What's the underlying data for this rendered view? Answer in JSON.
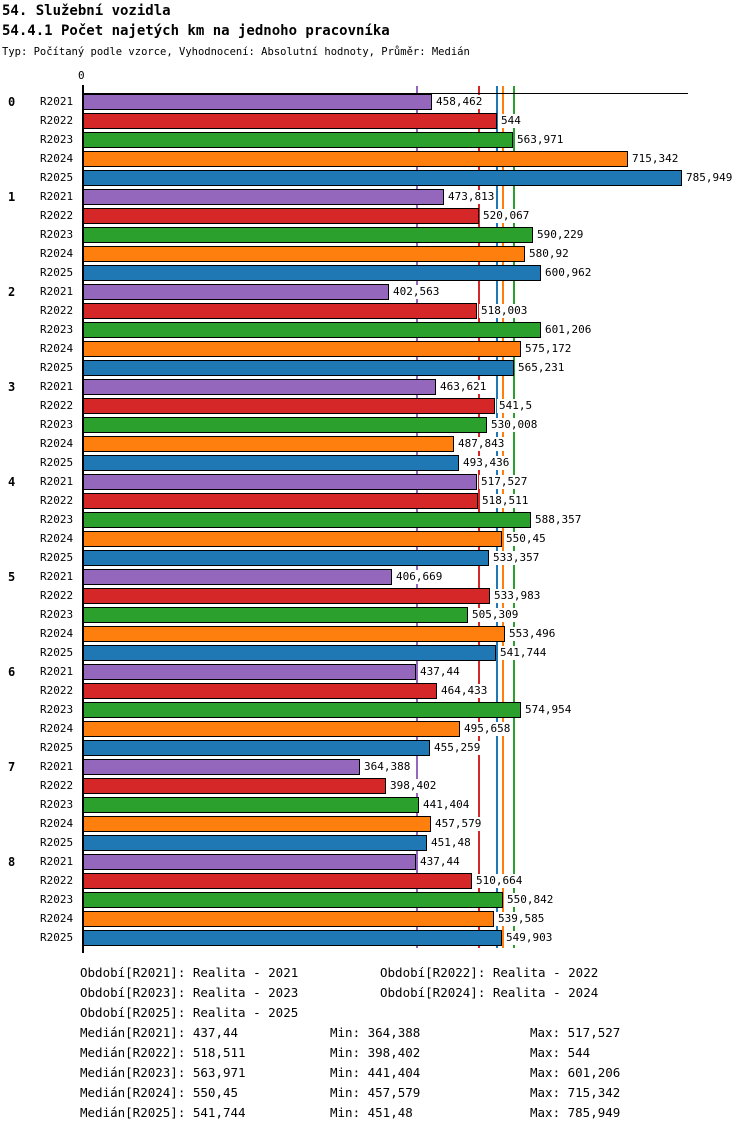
{
  "header": {
    "title1": "54. Služební vozidla",
    "title2": "54.4.1 Počet najetých km na jednoho pracovníka",
    "meta": "Typ: Počítaný podle vzorce, Vyhodnocení: Absolutní hodnoty, Průměr: Medián"
  },
  "chart_data": {
    "type": "bar",
    "orientation": "horizontal",
    "value_axis": {
      "zero_label": "0",
      "xlim": [
        0,
        786
      ],
      "grid": false
    },
    "legend_position": "bottom",
    "series": [
      {
        "code": "R2021",
        "color": "#9467bd",
        "median": "437,44",
        "min": "364,388",
        "max": "517,527"
      },
      {
        "code": "R2022",
        "color": "#d62728",
        "median": "518,511",
        "min": "398,402",
        "max": "544"
      },
      {
        "code": "R2023",
        "color": "#2ca02c",
        "median": "563,971",
        "min": "441,404",
        "max": "601,206"
      },
      {
        "code": "R2024",
        "color": "#ff7f0e",
        "median": "550,45",
        "min": "457,579",
        "max": "715,342"
      },
      {
        "code": "R2025",
        "color": "#1f77b4",
        "median": "541,744",
        "min": "451,48",
        "max": "785,949"
      }
    ],
    "groups": [
      {
        "label": "0",
        "values": [
          "458,462",
          "544",
          "563,971",
          "715,342",
          "785,949"
        ]
      },
      {
        "label": "1",
        "values": [
          "473,813",
          "520,067",
          "590,229",
          "580,92",
          "600,962"
        ]
      },
      {
        "label": "2",
        "values": [
          "402,563",
          "518,003",
          "601,206",
          "575,172",
          "565,231"
        ]
      },
      {
        "label": "3",
        "values": [
          "463,621",
          "541,5",
          "530,008",
          "487,843",
          "493,436"
        ]
      },
      {
        "label": "4",
        "values": [
          "517,527",
          "518,511",
          "588,357",
          "550,45",
          "533,357"
        ]
      },
      {
        "label": "5",
        "values": [
          "406,669",
          "533,983",
          "505,309",
          "553,496",
          "541,744"
        ]
      },
      {
        "label": "6",
        "values": [
          "437,44",
          "464,433",
          "574,954",
          "495,658",
          "455,259"
        ]
      },
      {
        "label": "7",
        "values": [
          "364,388",
          "398,402",
          "441,404",
          "457,579",
          "451,48"
        ]
      },
      {
        "label": "8",
        "values": [
          "437,44",
          "510,664",
          "550,842",
          "539,585",
          "549,903"
        ]
      }
    ]
  },
  "legend": {
    "rows": [
      [
        "Období[R2021]: Realita - 2021",
        "Období[R2022]: Realita - 2022"
      ],
      [
        "Období[R2023]: Realita - 2023",
        "Období[R2024]: Realita - 2024"
      ],
      [
        "Období[R2025]: Realita - 2025"
      ]
    ]
  },
  "stats": {
    "rows": [
      {
        "label": "Medián[R2021]: 437,44",
        "min": "Min: 364,388",
        "max": "Max: 517,527"
      },
      {
        "label": "Medián[R2022]: 518,511",
        "min": "Min: 398,402",
        "max": "Max: 544"
      },
      {
        "label": "Medián[R2023]: 563,971",
        "min": "Min: 441,404",
        "max": "Max: 601,206"
      },
      {
        "label": "Medián[R2024]: 550,45",
        "min": "Min: 457,579",
        "max": "Max: 715,342"
      },
      {
        "label": "Medián[R2025]: 541,744",
        "min": "Min: 451,48",
        "max": "Max: 785,949"
      }
    ]
  }
}
